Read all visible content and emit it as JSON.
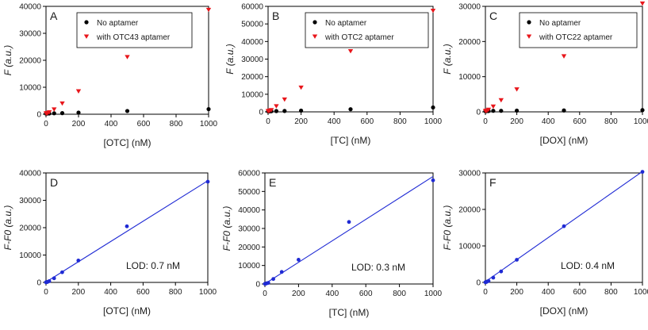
{
  "colors": {
    "no_aptamer": "#000000",
    "with_aptamer": "#e8161b",
    "fit": "#1f2ad4"
  },
  "chart_data": [
    {
      "type": "scatter",
      "panel": "A",
      "xlabel": "[OTC] (nM)",
      "ylabel": "F (a.u.)",
      "xlim": [
        0,
        1000
      ],
      "ylim": [
        0,
        40000
      ],
      "xticks": [
        0,
        200,
        400,
        600,
        800,
        1000
      ],
      "yticks": [
        0,
        10000,
        20000,
        30000,
        40000
      ],
      "legend": "top-right",
      "series": [
        {
          "name": "No aptamer",
          "marker": "circle",
          "x": [
            0,
            5,
            10,
            20,
            50,
            100,
            200,
            500,
            1000
          ],
          "y": [
            250,
            250,
            300,
            300,
            350,
            400,
            600,
            1200,
            1900
          ]
        },
        {
          "name": "with OTC43 aptamer",
          "marker": "triangle-down",
          "x": [
            0,
            5,
            10,
            20,
            50,
            100,
            200,
            500,
            1000
          ],
          "y": [
            300,
            350,
            450,
            700,
            1800,
            4000,
            8500,
            21200,
            38700
          ]
        }
      ]
    },
    {
      "type": "scatter",
      "panel": "B",
      "xlabel": "[TC] (nM)",
      "ylabel": "F (a.u.)",
      "xlim": [
        0,
        1000
      ],
      "ylim": [
        0,
        60000
      ],
      "xticks": [
        0,
        200,
        400,
        600,
        800,
        1000
      ],
      "yticks": [
        0,
        10000,
        20000,
        30000,
        40000,
        50000,
        60000
      ],
      "legend": "top-right",
      "series": [
        {
          "name": "No aptamer",
          "marker": "circle",
          "x": [
            0,
            5,
            10,
            20,
            50,
            100,
            200,
            500,
            1000
          ],
          "y": [
            300,
            300,
            350,
            400,
            450,
            500,
            700,
            1500,
            2500
          ]
        },
        {
          "name": "with OTC2 aptamer",
          "marker": "triangle-down",
          "x": [
            0,
            5,
            10,
            20,
            50,
            100,
            200,
            500,
            1000
          ],
          "y": [
            400,
            500,
            700,
            1000,
            3200,
            7000,
            13800,
            34500,
            57500
          ]
        }
      ]
    },
    {
      "type": "scatter",
      "panel": "C",
      "xlabel": "[DOX] (nM)",
      "ylabel": "F (a.u.)",
      "xlim": [
        0,
        1000
      ],
      "ylim": [
        0,
        30000
      ],
      "xticks": [
        0,
        200,
        400,
        600,
        800,
        1000
      ],
      "yticks": [
        0,
        10000,
        20000,
        30000
      ],
      "legend": "top-right",
      "series": [
        {
          "name": "No aptamer",
          "marker": "circle",
          "x": [
            0,
            5,
            10,
            20,
            50,
            100,
            200,
            500,
            1000
          ],
          "y": [
            200,
            200,
            250,
            250,
            300,
            300,
            350,
            400,
            500
          ]
        },
        {
          "name": "with OTC22 aptamer",
          "marker": "triangle-down",
          "x": [
            0,
            5,
            10,
            20,
            50,
            100,
            200,
            500,
            1000
          ],
          "y": [
            250,
            300,
            350,
            600,
            1500,
            3300,
            6400,
            15800,
            30800
          ]
        }
      ]
    },
    {
      "type": "scatter",
      "panel": "D",
      "xlabel": "[OTC] (nM)",
      "ylabel": "F-F0 (a.u.)",
      "xlim": [
        0,
        1000
      ],
      "ylim": [
        0,
        40000
      ],
      "xticks": [
        0,
        200,
        400,
        600,
        800,
        1000
      ],
      "yticks": [
        0,
        10000,
        20000,
        30000,
        40000
      ],
      "annotation": "LOD: 0.7 nM",
      "fit": {
        "slope": 37.0,
        "intercept": 150
      },
      "series": [
        {
          "name": "data",
          "marker": "circle",
          "x": [
            0,
            5,
            10,
            20,
            50,
            100,
            200,
            500,
            1000
          ],
          "y": [
            50,
            100,
            200,
            450,
            1500,
            3700,
            8000,
            20500,
            36800
          ]
        }
      ]
    },
    {
      "type": "scatter",
      "panel": "E",
      "xlabel": "[TC] (nM)",
      "ylabel": "F-F0 (a.u.)",
      "xlim": [
        0,
        1000
      ],
      "ylim": [
        0,
        60000
      ],
      "xticks": [
        0,
        200,
        400,
        600,
        800,
        1000
      ],
      "yticks": [
        0,
        10000,
        20000,
        30000,
        40000,
        50000,
        60000
      ],
      "annotation": "LOD: 0.3 nM",
      "fit": {
        "slope": 58.0,
        "intercept": 100
      },
      "series": [
        {
          "name": "data",
          "marker": "circle",
          "x": [
            0,
            5,
            10,
            20,
            50,
            100,
            200,
            500,
            1000
          ],
          "y": [
            100,
            200,
            350,
            600,
            2700,
            6500,
            13100,
            33500,
            56000
          ]
        }
      ]
    },
    {
      "type": "scatter",
      "panel": "F",
      "xlabel": "[DOX] (nM)",
      "ylabel": "F-F0 (a.u.)",
      "xlim": [
        0,
        1000
      ],
      "ylim": [
        0,
        30000
      ],
      "xticks": [
        0,
        200,
        400,
        600,
        800,
        1000
      ],
      "yticks": [
        0,
        10000,
        20000,
        30000
      ],
      "annotation": "LOD: 0.4 nM",
      "fit": {
        "slope": 30.2,
        "intercept": 200
      },
      "series": [
        {
          "name": "data",
          "marker": "circle",
          "x": [
            0,
            5,
            10,
            20,
            50,
            100,
            200,
            500,
            1000
          ],
          "y": [
            50,
            100,
            200,
            400,
            1300,
            3000,
            6200,
            15400,
            30300
          ]
        }
      ]
    }
  ]
}
